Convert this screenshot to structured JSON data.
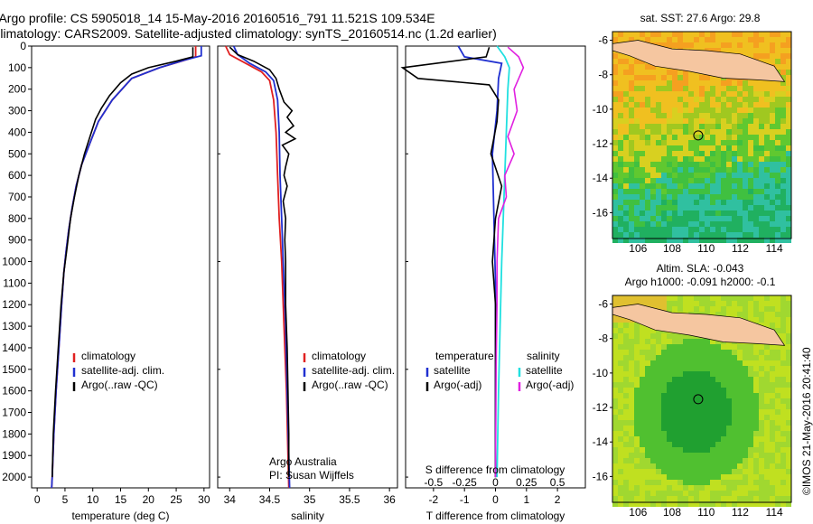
{
  "header": {
    "line1": "Argo profile: CS 5905018_14 15-May-2016 20160516_791 11.521S 109.534E",
    "line2": "Climatology: CARS2009. Satellite-adjusted climatology: synTS_20160514.nc (1.2d earlier)"
  },
  "colors": {
    "climatology": "#e02020",
    "satellite": "#2030d0",
    "argo": "#000000",
    "sal_satellite": "#20e0e0",
    "sal_argo": "#e020e0"
  },
  "chart_data": [
    {
      "type": "line",
      "id": "temperature",
      "xlabel": "temperature (deg C)",
      "ylabel": "",
      "xlim": [
        -1,
        31
      ],
      "ylim": [
        2050,
        0
      ],
      "xticks": [
        0,
        5,
        10,
        15,
        20,
        25,
        30
      ],
      "yticks": [
        0,
        100,
        200,
        300,
        400,
        500,
        600,
        700,
        800,
        900,
        1000,
        1100,
        1200,
        1300,
        1400,
        1500,
        1600,
        1700,
        1800,
        1900,
        2000
      ],
      "legend": [
        "climatology",
        "satellite-adj. clim.",
        "Argo(..raw -QC)"
      ],
      "series": [
        {
          "name": "climatology",
          "color": "#e02020",
          "points": [
            [
              28.5,
              0
            ],
            [
              28.5,
              50
            ],
            [
              26,
              70
            ],
            [
              22,
              100
            ],
            [
              17,
              150
            ],
            [
              13.5,
              250
            ],
            [
              11,
              350
            ],
            [
              9.5,
              450
            ],
            [
              8,
              550
            ],
            [
              7,
              650
            ],
            [
              6.3,
              750
            ],
            [
              5.7,
              850
            ],
            [
              5.2,
              950
            ],
            [
              4.8,
              1050
            ],
            [
              4.4,
              1200
            ],
            [
              3.9,
              1400
            ],
            [
              3.4,
              1600
            ],
            [
              3.0,
              1800
            ],
            [
              2.7,
              2000
            ],
            [
              2.6,
              2050
            ]
          ]
        },
        {
          "name": "satellite-adj. clim.",
          "color": "#2030d0",
          "points": [
            [
              29.5,
              0
            ],
            [
              29.5,
              45
            ],
            [
              26.5,
              65
            ],
            [
              22,
              100
            ],
            [
              17,
              150
            ],
            [
              13.5,
              250
            ],
            [
              11,
              350
            ],
            [
              9.5,
              450
            ],
            [
              8,
              550
            ],
            [
              7,
              650
            ],
            [
              6.3,
              750
            ],
            [
              5.7,
              850
            ],
            [
              5.2,
              950
            ],
            [
              4.8,
              1050
            ],
            [
              4.4,
              1200
            ],
            [
              3.9,
              1400
            ],
            [
              3.4,
              1600
            ],
            [
              3.0,
              1800
            ],
            [
              2.7,
              2000
            ],
            [
              2.6,
              2050
            ]
          ]
        },
        {
          "name": "Argo(..raw -QC)",
          "color": "#000000",
          "points": [
            [
              28,
              5
            ],
            [
              28,
              50
            ],
            [
              25,
              70
            ],
            [
              20,
              100
            ],
            [
              17,
              130
            ],
            [
              15,
              170
            ],
            [
              13,
              230
            ],
            [
              11.5,
              290
            ],
            [
              10.5,
              340
            ],
            [
              9.5,
              420
            ],
            [
              8.5,
              500
            ],
            [
              7.5,
              600
            ],
            [
              6.7,
              700
            ],
            [
              6,
              800
            ],
            [
              5.3,
              950
            ],
            [
              4.8,
              1050
            ],
            [
              4.3,
              1200
            ],
            [
              3.8,
              1400
            ],
            [
              3.3,
              1600
            ],
            [
              2.9,
              1800
            ],
            [
              2.7,
              2000
            ]
          ]
        }
      ]
    },
    {
      "type": "line",
      "id": "salinity",
      "xlabel": "salinity",
      "xlim": [
        33.85,
        36.1
      ],
      "ylim": [
        2050,
        0
      ],
      "xticks": [
        34,
        34.5,
        35,
        35.5,
        36
      ],
      "legend": [
        "climatology",
        "satellite-adj. clim.",
        "Argo(..raw -QC)"
      ],
      "annotations": [
        "Argo Australia",
        "PI: Susan Wijffels"
      ],
      "series": [
        {
          "name": "climatology",
          "color": "#e02020",
          "points": [
            [
              33.95,
              0
            ],
            [
              34.0,
              40
            ],
            [
              34.2,
              80
            ],
            [
              34.4,
              120
            ],
            [
              34.5,
              160
            ],
            [
              34.55,
              250
            ],
            [
              34.58,
              400
            ],
            [
              34.6,
              600
            ],
            [
              34.62,
              800
            ],
            [
              34.65,
              1000
            ],
            [
              34.68,
              1300
            ],
            [
              34.71,
              1600
            ],
            [
              34.73,
              1900
            ],
            [
              34.74,
              2050
            ]
          ]
        },
        {
          "name": "satellite-adj. clim.",
          "color": "#2030d0",
          "points": [
            [
              34.05,
              0
            ],
            [
              34.1,
              40
            ],
            [
              34.25,
              80
            ],
            [
              34.45,
              120
            ],
            [
              34.55,
              160
            ],
            [
              34.6,
              250
            ],
            [
              34.62,
              400
            ],
            [
              34.63,
              600
            ],
            [
              34.65,
              800
            ],
            [
              34.67,
              1000
            ],
            [
              34.7,
              1300
            ],
            [
              34.72,
              1600
            ],
            [
              34.74,
              1900
            ],
            [
              34.75,
              2050
            ]
          ]
        },
        {
          "name": "Argo(..raw -QC)",
          "color": "#000000",
          "points": [
            [
              34.0,
              5
            ],
            [
              34.1,
              40
            ],
            [
              34.3,
              70
            ],
            [
              34.5,
              110
            ],
            [
              34.58,
              150
            ],
            [
              34.62,
              200
            ],
            [
              34.68,
              260
            ],
            [
              34.78,
              300
            ],
            [
              34.72,
              330
            ],
            [
              34.8,
              370
            ],
            [
              34.7,
              400
            ],
            [
              34.82,
              430
            ],
            [
              34.66,
              460
            ],
            [
              34.74,
              500
            ],
            [
              34.7,
              560
            ],
            [
              34.68,
              600
            ],
            [
              34.72,
              650
            ],
            [
              34.67,
              720
            ],
            [
              34.7,
              800
            ],
            [
              34.69,
              900
            ],
            [
              34.7,
              1000
            ],
            [
              34.7,
              1200
            ],
            [
              34.72,
              1400
            ],
            [
              34.73,
              1600
            ],
            [
              34.74,
              1800
            ],
            [
              34.74,
              2000
            ]
          ]
        }
      ]
    },
    {
      "type": "line",
      "id": "difference",
      "xlabel": "T difference from climatology",
      "xlabel_top": "S difference from climatology",
      "xlim": [
        -2.9,
        2.9
      ],
      "ylim": [
        2050,
        0
      ],
      "xticks": [
        -2,
        -1,
        0,
        1,
        2
      ],
      "xticks_top": [
        -0.5,
        -0.25,
        0,
        0.25,
        0.5
      ],
      "legend_left": [
        "temperature",
        "satellite",
        "Argo(-adj)"
      ],
      "legend_right": [
        "salinity",
        "satellite",
        "Argo(-adj)"
      ],
      "series": [
        {
          "name": "temperature satellite",
          "color": "#2030d0",
          "points": [
            [
              -1.2,
              0
            ],
            [
              -1,
              50
            ],
            [
              0.2,
              80
            ],
            [
              0.1,
              150
            ],
            [
              0.05,
              300
            ],
            [
              -0.1,
              500
            ],
            [
              -0.05,
              800
            ],
            [
              0,
              1100
            ],
            [
              0,
              1500
            ],
            [
              0,
              2000
            ]
          ]
        },
        {
          "name": "temperature Argo(-adj)",
          "color": "#000000",
          "points": [
            [
              -0.2,
              5
            ],
            [
              -0.3,
              50
            ],
            [
              -3,
              100
            ],
            [
              -2.5,
              150
            ],
            [
              -0.2,
              180
            ],
            [
              0.1,
              250
            ],
            [
              0.05,
              350
            ],
            [
              -0.15,
              500
            ],
            [
              0.2,
              650
            ],
            [
              0,
              800
            ],
            [
              -0.1,
              1000
            ],
            [
              0,
              1200
            ],
            [
              0,
              1500
            ],
            [
              0,
              2000
            ]
          ]
        },
        {
          "name": "salinity satellite",
          "color": "#20e0e0",
          "points": [
            [
              0.05,
              0
            ],
            [
              0.3,
              50
            ],
            [
              0.45,
              100
            ],
            [
              0.4,
              200
            ],
            [
              0.35,
              400
            ],
            [
              0.3,
              600
            ],
            [
              0.25,
              800
            ],
            [
              0.2,
              1000
            ],
            [
              0.15,
              1300
            ],
            [
              0.1,
              1600
            ],
            [
              0.05,
              2000
            ]
          ]
        },
        {
          "name": "salinity Argo(-adj)",
          "color": "#e020e0",
          "points": [
            [
              0.4,
              5
            ],
            [
              0.75,
              50
            ],
            [
              0.9,
              100
            ],
            [
              0.6,
              200
            ],
            [
              0.7,
              300
            ],
            [
              0.4,
              420
            ],
            [
              0.6,
              500
            ],
            [
              0.3,
              600
            ],
            [
              0.35,
              700
            ],
            [
              0.1,
              800
            ],
            [
              0.05,
              1000
            ],
            [
              0.05,
              1200
            ],
            [
              0.02,
              1500
            ],
            [
              0,
              2000
            ]
          ]
        }
      ]
    },
    {
      "type": "heatmap",
      "id": "map-sst",
      "title": "sat. SST: 27.6  Argo: 29.8",
      "xlim": [
        104.5,
        115
      ],
      "ylim": [
        -17.5,
        -5.5
      ],
      "xticks": [
        106,
        108,
        110,
        112,
        114
      ],
      "yticks": [
        -6,
        -8,
        -10,
        -12,
        -14,
        -16
      ],
      "marker": [
        109.534,
        -11.521
      ]
    },
    {
      "type": "heatmap",
      "id": "map-sla",
      "title_lines": [
        "Altim. SLA: -0.043",
        "Argo h1000: -0.091  h2000: -0.1"
      ],
      "xlim": [
        104.5,
        115
      ],
      "ylim": [
        -17.5,
        -5.5
      ],
      "xticks": [
        106,
        108,
        110,
        112,
        114
      ],
      "yticks": [
        -6,
        -8,
        -10,
        -12,
        -14,
        -16
      ],
      "marker": [
        109.534,
        -11.521
      ]
    }
  ],
  "footer": {
    "credit": "©IMOS 21-May-2016 20:41:40"
  }
}
